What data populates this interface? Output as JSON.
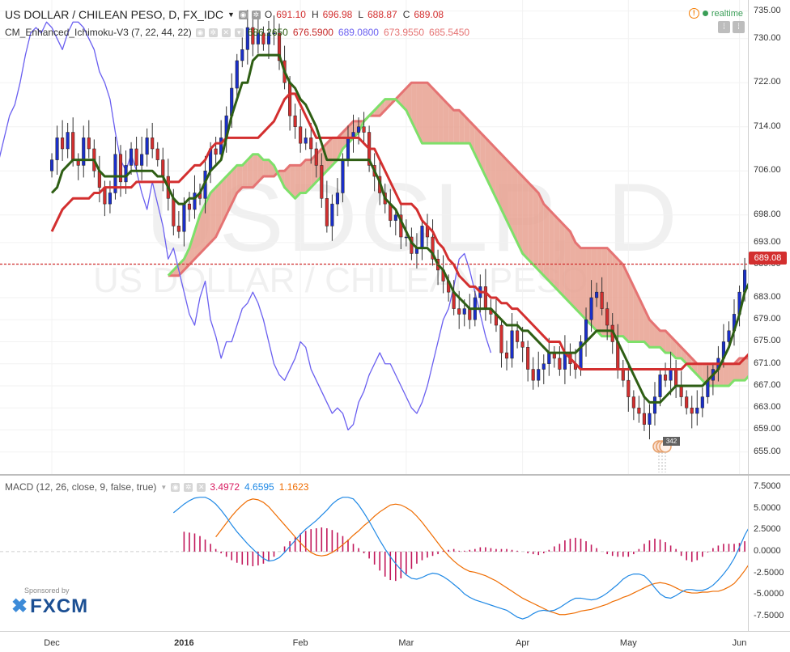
{
  "header": {
    "title": "US DOLLAR / CHILEAN PESO, D, FX_IDC",
    "ohlc": [
      {
        "k": "O",
        "v": "691.10"
      },
      {
        "k": "H",
        "v": "696.98"
      },
      {
        "k": "L",
        "v": "688.87"
      },
      {
        "k": "C",
        "v": "689.08"
      }
    ],
    "realtime": "realtime",
    "warn": "!"
  },
  "indicator": {
    "label": "CM_Enhanced_Ichimoku-V3 (7, 22, 44, 22)",
    "values": [
      {
        "v": "686.2650",
        "color": "#2e5e14"
      },
      {
        "v": "676.5900",
        "color": "#c62828"
      },
      {
        "v": "689.0800",
        "color": "#6a5ff0"
      },
      {
        "v": "673.9550",
        "color": "#e57373"
      },
      {
        "v": "685.5450",
        "color": "#e57373"
      }
    ]
  },
  "macd": {
    "label": "MACD (12, 26, close, 9, false, true)",
    "values": [
      {
        "v": "3.4972",
        "color": "#d81b60"
      },
      {
        "v": "4.6595",
        "color": "#1e88e5"
      },
      {
        "v": "1.1623",
        "color": "#ef6c00"
      }
    ]
  },
  "watermark": {
    "symbol": "USDCLP, D",
    "name": "US DOLLAR / CHILEAN PESO"
  },
  "last_price": "689.08",
  "sponsor": {
    "small": "Sponsored by",
    "brand": "FXCM"
  },
  "events_badge": "342",
  "colors": {
    "bull": "#1a2fc9",
    "bear": "#d32f2f",
    "tenkan": "#2e5e14",
    "kijun": "#d32f2f",
    "chikou": "#6a5ff0",
    "cloud_fill": "#e8a191",
    "spanA": "#7ee06a",
    "spanB": "#e57373",
    "macd": "#1e88e5",
    "signal": "#ef6c00",
    "hist": "#c2185b"
  },
  "chart_data": [
    {
      "type": "candlestick",
      "title": "US DOLLAR / CHILEAN PESO, D, FX_IDC",
      "ylim": [
        651,
        737
      ],
      "yticks": [
        "735.00",
        "730.00",
        "722.00",
        "714.00",
        "706.00",
        "698.00",
        "693.00",
        "689.00",
        "683.00",
        "679.00",
        "675.00",
        "671.00",
        "667.00",
        "663.00",
        "659.00",
        "655.00"
      ],
      "xticks": [
        {
          "label": "Dec",
          "x": 0,
          "bold": false
        },
        {
          "label": "2016",
          "x": 25,
          "bold": true
        },
        {
          "label": "Feb",
          "x": 47,
          "bold": false
        },
        {
          "label": "Mar",
          "x": 67,
          "bold": false
        },
        {
          "label": "Apr",
          "x": 89,
          "bold": false
        },
        {
          "label": "May",
          "x": 109,
          "bold": false
        },
        {
          "label": "Jun",
          "x": 130,
          "bold": false
        }
      ],
      "x_range": [
        -9.8,
        131.6
      ],
      "closes": [
        708,
        712,
        710,
        713,
        708,
        707,
        712,
        710,
        706,
        703,
        700,
        702,
        709,
        704,
        707,
        710,
        707,
        709,
        712,
        710,
        708,
        705,
        701,
        696,
        695,
        700,
        699,
        702,
        701,
        706,
        710,
        709,
        712,
        716,
        721,
        726,
        728,
        732,
        729,
        731,
        729,
        731,
        731,
        726,
        722,
        716,
        714,
        711,
        712,
        710,
        707,
        701,
        696,
        700,
        702,
        708,
        712,
        713,
        714,
        713,
        707,
        705,
        702,
        700,
        697,
        698,
        694,
        694,
        691,
        692,
        696,
        694,
        690,
        688,
        686,
        684,
        681,
        680,
        681,
        679,
        683,
        685,
        681,
        680,
        678,
        673,
        672,
        677,
        675,
        674,
        670,
        668,
        670,
        671,
        673,
        672,
        670,
        673,
        671,
        670,
        675,
        679,
        683,
        684,
        681,
        678,
        675,
        670,
        668,
        665,
        663,
        662,
        660,
        662,
        665,
        669,
        668,
        670,
        667,
        665,
        663,
        662,
        663,
        665,
        668,
        670,
        672,
        675,
        677,
        680,
        684,
        688,
        693,
        692,
        690,
        689
      ],
      "tenkan": [
        702,
        703,
        706,
        707,
        708,
        708,
        708,
        708,
        708,
        706,
        705,
        705,
        705,
        705,
        705,
        706,
        706,
        706,
        706,
        706,
        705,
        705,
        703,
        701,
        700,
        700,
        701,
        701,
        702,
        704,
        706,
        707,
        708,
        712,
        716,
        719,
        722,
        722,
        726,
        727,
        727,
        727,
        727,
        727,
        724,
        722,
        721,
        719,
        718,
        716,
        714,
        711,
        708,
        708,
        708,
        708,
        708,
        708,
        708,
        708,
        708,
        706,
        704,
        701,
        700,
        699,
        697,
        695,
        693,
        692,
        692,
        692,
        691,
        689,
        688,
        686,
        684,
        683,
        682,
        681,
        681,
        681,
        681,
        681,
        680,
        679,
        678,
        678,
        678,
        677,
        677,
        676,
        675,
        674,
        673,
        673,
        673,
        673,
        673,
        673,
        674,
        675,
        676,
        677,
        677,
        677,
        677,
        675,
        673,
        671,
        669,
        667,
        665,
        664,
        664,
        664,
        665,
        666,
        667,
        667,
        667,
        667,
        667,
        667,
        668,
        669,
        670,
        672,
        674,
        677,
        680,
        684,
        686
      ],
      "kijun": [
        695,
        697,
        699,
        700,
        701,
        701,
        701,
        701,
        702,
        702,
        703,
        703,
        703,
        703,
        703,
        703,
        704,
        704,
        704,
        704,
        704,
        704,
        704,
        704,
        704,
        705,
        706,
        707,
        707,
        708,
        710,
        711,
        711,
        712,
        712,
        712,
        712,
        712,
        712,
        712,
        713,
        714,
        715,
        717,
        719,
        720,
        720,
        718,
        716,
        714,
        712,
        712,
        712,
        712,
        712,
        712,
        712,
        712,
        712,
        711,
        710,
        710,
        708,
        706,
        704,
        702,
        700,
        700,
        700,
        699,
        697,
        696,
        695,
        693,
        692,
        690,
        689,
        687,
        686,
        685,
        685,
        684,
        684,
        683,
        683,
        682,
        682,
        681,
        681,
        680,
        679,
        678,
        677,
        676,
        675,
        675,
        675,
        673,
        672,
        671,
        670,
        670,
        670,
        670,
        670,
        670,
        670,
        670,
        670,
        670,
        670,
        670,
        670,
        670,
        670,
        670,
        670,
        670,
        670,
        670,
        671,
        671,
        671,
        671,
        671,
        671,
        671,
        671,
        671,
        671,
        671,
        672,
        673,
        674,
        675,
        676
      ],
      "chikou": [
        712,
        714,
        710,
        712,
        708,
        706,
        703,
        700,
        699,
        698,
        699,
        703,
        708,
        712,
        716,
        718,
        722,
        727,
        731,
        732,
        731,
        733,
        732,
        730,
        728,
        731,
        733,
        733,
        732,
        730,
        728,
        724,
        722,
        719,
        713,
        708,
        706,
        709,
        706,
        702,
        699,
        704,
        700,
        696,
        690,
        692,
        688,
        684,
        680,
        678,
        683,
        686,
        679,
        676,
        672,
        675,
        675,
        678,
        681,
        682,
        684,
        682,
        679,
        675,
        671,
        669,
        668,
        670,
        672,
        675,
        674,
        670,
        668,
        666,
        664,
        662,
        663,
        662,
        659,
        660,
        664,
        666,
        669,
        671,
        673,
        671,
        671,
        669,
        667,
        665,
        663,
        662,
        664,
        667,
        671,
        675,
        679,
        681,
        685,
        690,
        691,
        688,
        684,
        680,
        676,
        673
      ],
      "spanA": [
        687,
        688,
        689,
        690,
        692,
        695,
        698,
        700,
        702,
        703,
        704,
        705,
        706,
        707,
        707,
        708,
        709,
        709,
        708,
        708,
        707,
        705,
        703,
        702,
        701,
        702,
        702,
        703,
        704,
        705,
        706,
        707,
        708,
        710,
        711,
        712,
        713,
        715,
        716,
        717,
        718,
        719,
        719,
        719,
        718,
        717,
        715,
        713,
        711,
        711,
        711,
        711,
        711,
        711,
        711,
        711,
        711,
        711,
        709,
        707,
        705,
        703,
        701,
        699,
        697,
        695,
        693,
        691,
        690,
        689,
        688,
        687,
        686,
        685,
        684,
        683,
        682,
        681,
        680,
        679,
        678,
        677,
        676,
        676,
        676,
        676,
        676,
        675,
        675,
        675,
        675,
        674,
        674,
        674,
        673,
        673,
        672,
        672,
        671,
        670,
        669,
        668,
        667,
        667,
        667,
        667,
        667,
        668,
        668,
        668,
        669,
        669,
        670
      ],
      "spanB": [
        687,
        687,
        687,
        688,
        689,
        690,
        691,
        692,
        693,
        694,
        696,
        698,
        700,
        702,
        703,
        703,
        703,
        704,
        705,
        705,
        705,
        706,
        706,
        707,
        707,
        707,
        708,
        708,
        709,
        710,
        711,
        712,
        712,
        713,
        714,
        715,
        715,
        715,
        716,
        716,
        716,
        717,
        718,
        719,
        720,
        721,
        722,
        722,
        722,
        722,
        721,
        720,
        719,
        718,
        717,
        717,
        716,
        715,
        714,
        713,
        712,
        711,
        710,
        709,
        708,
        707,
        706,
        705,
        704,
        703,
        702,
        700,
        699,
        698,
        697,
        696,
        695,
        693,
        692,
        692,
        692,
        692,
        692,
        692,
        691,
        690,
        689,
        687,
        685,
        683,
        681,
        679,
        678,
        677,
        677,
        676,
        675,
        674,
        673,
        672,
        671,
        671,
        671,
        671,
        671,
        671,
        671,
        671,
        672,
        672,
        672,
        672,
        672,
        672,
        672,
        672
      ]
    },
    {
      "type": "macd",
      "title": "MACD (12, 26, close, 9, false, true)",
      "ylim": [
        -9.2,
        8.8
      ],
      "yticks": [
        "7.5000",
        "5.0000",
        "2.5000",
        "0.0000",
        "-2.5000",
        "-5.0000",
        "-7.5000"
      ],
      "macd": [
        4.5,
        5.0,
        5.5,
        5.9,
        6.2,
        6.3,
        6.3,
        6.0,
        5.5,
        4.8,
        4.0,
        3.1,
        2.3,
        1.6,
        0.9,
        0.3,
        -0.3,
        -0.8,
        -1.1,
        -1.0,
        -0.7,
        -0.1,
        0.6,
        1.3,
        2.0,
        2.6,
        3.1,
        3.6,
        4.2,
        4.8,
        5.5,
        6.0,
        6.3,
        6.3,
        6.1,
        5.4,
        4.5,
        3.5,
        2.4,
        1.3,
        0.3,
        -0.6,
        -1.4,
        -2.1,
        -2.7,
        -3.1,
        -3.2,
        -3.0,
        -2.7,
        -2.5,
        -2.6,
        -2.9,
        -3.3,
        -3.8,
        -4.3,
        -4.9,
        -5.3,
        -5.6,
        -5.8,
        -6.0,
        -6.2,
        -6.4,
        -6.6,
        -6.8,
        -7.2,
        -7.6,
        -7.8,
        -7.6,
        -7.2,
        -6.9,
        -6.8,
        -6.9,
        -6.8,
        -6.5,
        -6.1,
        -5.7,
        -5.4,
        -5.4,
        -5.5,
        -5.6,
        -5.5,
        -5.2,
        -4.8,
        -4.3,
        -3.8,
        -3.2,
        -2.8,
        -2.6,
        -2.6,
        -2.8,
        -3.4,
        -4.2,
        -4.9,
        -5.3,
        -5.4,
        -5.1,
        -4.7,
        -4.4,
        -4.4,
        -4.5,
        -4.5,
        -4.3,
        -3.9,
        -3.3,
        -2.6,
        -1.8,
        -0.8,
        0.5,
        1.9,
        3.0,
        3.9,
        4.4,
        4.7
      ],
      "signal": [
        1.7,
        2.5,
        3.3,
        4.1,
        4.8,
        5.4,
        5.9,
        6.1,
        6.0,
        5.7,
        5.2,
        4.5,
        3.8,
        3.1,
        2.4,
        1.7,
        1.0,
        0.4,
        -0.1,
        -0.4,
        -0.5,
        -0.4,
        -0.1,
        0.3,
        0.8,
        1.3,
        1.9,
        2.4,
        3.0,
        3.5,
        4.1,
        4.6,
        5.0,
        5.4,
        5.5,
        5.4,
        5.1,
        4.7,
        4.1,
        3.4,
        2.6,
        1.8,
        1.0,
        0.2,
        -0.5,
        -1.1,
        -1.6,
        -2.0,
        -2.3,
        -2.4,
        -2.6,
        -2.8,
        -3.1,
        -3.4,
        -3.8,
        -4.2,
        -4.6,
        -5.0,
        -5.4,
        -5.7,
        -6.0,
        -6.3,
        -6.6,
        -6.9,
        -7.1,
        -7.3,
        -7.3,
        -7.2,
        -7.1,
        -6.9,
        -6.8,
        -6.7,
        -6.5,
        -6.3,
        -6.1,
        -5.8,
        -5.6,
        -5.3,
        -5.1,
        -4.8,
        -4.5,
        -4.2,
        -3.9,
        -3.7,
        -3.6,
        -3.7,
        -3.9,
        -4.2,
        -4.5,
        -4.7,
        -4.8,
        -4.8,
        -4.7,
        -4.7,
        -4.6,
        -4.6,
        -4.4,
        -4.1,
        -3.7,
        -3.0,
        -2.2,
        -1.3,
        -0.4,
        0.5,
        1.1
      ],
      "hist": [
        2.3,
        2.2,
        2.1,
        1.8,
        1.4,
        0.9,
        0.3,
        -0.2,
        -0.6,
        -1.0,
        -1.3,
        -1.5,
        -1.6,
        -1.7,
        -1.6,
        -1.4,
        -1.1,
        -0.6,
        0.0,
        0.6,
        1.2,
        1.7,
        2.1,
        2.4,
        2.6,
        2.7,
        2.8,
        2.7,
        2.5,
        2.2,
        1.8,
        1.4,
        0.9,
        0.4,
        -0.2,
        -0.8,
        -1.5,
        -2.2,
        -2.9,
        -3.3,
        -3.4,
        -3.1,
        -2.6,
        -2.0,
        -1.4,
        -1.0,
        -0.7,
        -0.5,
        -0.3,
        0.1,
        0.2,
        0.3,
        0.1,
        0.1,
        0.2,
        0.3,
        0.5,
        0.5,
        0.4,
        0.3,
        0.3,
        0.3,
        0.2,
        0.1,
        0.0,
        -0.2,
        -0.3,
        -0.4,
        -0.2,
        0.2,
        0.6,
        0.9,
        1.3,
        1.5,
        1.6,
        1.5,
        1.2,
        0.8,
        0.4,
        0.0,
        -0.3,
        -0.5,
        -0.6,
        -0.6,
        -0.6,
        -0.3,
        0.3,
        0.9,
        1.3,
        1.5,
        1.4,
        1.1,
        0.7,
        0.3,
        -0.5,
        -1.0,
        -1.2,
        -1.0,
        -0.6,
        -0.1,
        0.4,
        0.7,
        0.9,
        0.9,
        0.9,
        1.0,
        1.2,
        1.6,
        2.3,
        3.0,
        3.5
      ]
    }
  ]
}
